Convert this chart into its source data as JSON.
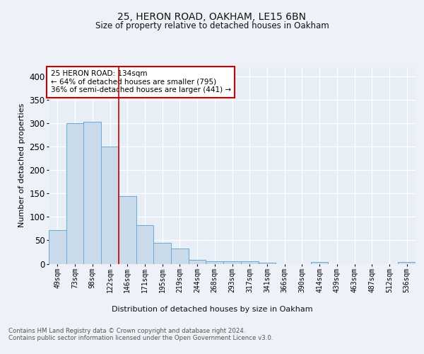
{
  "title1": "25, HERON ROAD, OAKHAM, LE15 6BN",
  "title2": "Size of property relative to detached houses in Oakham",
  "xlabel": "Distribution of detached houses by size in Oakham",
  "ylabel": "Number of detached properties",
  "categories": [
    "49sqm",
    "73sqm",
    "98sqm",
    "122sqm",
    "146sqm",
    "171sqm",
    "195sqm",
    "219sqm",
    "244sqm",
    "268sqm",
    "293sqm",
    "317sqm",
    "341sqm",
    "366sqm",
    "390sqm",
    "414sqm",
    "439sqm",
    "463sqm",
    "487sqm",
    "512sqm",
    "536sqm"
  ],
  "values": [
    72,
    300,
    304,
    250,
    145,
    83,
    44,
    33,
    9,
    6,
    6,
    6,
    2,
    0,
    0,
    4,
    0,
    0,
    0,
    0,
    4
  ],
  "bar_color": "#c9daea",
  "bar_edge_color": "#6aaad4",
  "red_line_x": 3.5,
  "annotation_text": "25 HERON ROAD: 134sqm\n← 64% of detached houses are smaller (795)\n36% of semi-detached houses are larger (441) →",
  "annotation_box_color": "#ffffff",
  "annotation_box_edge_color": "#cc0000",
  "footnote": "Contains HM Land Registry data © Crown copyright and database right 2024.\nContains public sector information licensed under the Open Government Licence v3.0.",
  "ylim": [
    0,
    420
  ],
  "yticks": [
    0,
    50,
    100,
    150,
    200,
    250,
    300,
    350,
    400
  ],
  "fig_bg": "#eef2f8",
  "plot_bg": "#e8eef6",
  "grid_color": "#ffffff"
}
